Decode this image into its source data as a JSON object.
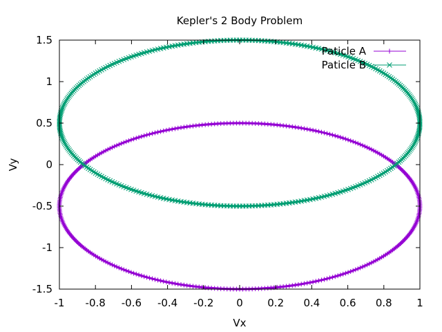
{
  "chart_data": {
    "type": "line",
    "title": "Kepler's 2 Body Problem",
    "xlabel": "Vx",
    "ylabel": "Vy",
    "xlim": [
      -1,
      1
    ],
    "ylim": [
      -1.5,
      1.5
    ],
    "x_ticks": [
      -1,
      -0.8,
      -0.6,
      -0.4,
      -0.2,
      0,
      0.2,
      0.4,
      0.6,
      0.8,
      1
    ],
    "x_tick_labels": [
      "-1",
      "-0.8",
      "-0.6",
      "-0.4",
      "-0.2",
      "0",
      "0.2",
      "0.4",
      "0.6",
      "0.8",
      "1"
    ],
    "y_ticks": [
      -1.5,
      -1,
      -0.5,
      0,
      0.5,
      1,
      1.5
    ],
    "y_tick_labels": [
      "-1.5",
      "-1",
      "-0.5",
      "0",
      "0.5",
      "1",
      "1.5"
    ],
    "grid": false,
    "legend_position": "top-right",
    "series": [
      {
        "name": "Paticle A",
        "color": "#9400d3",
        "marker": "plus",
        "shape": "ellipse",
        "center": [
          0,
          -0.5
        ],
        "radii": [
          1,
          1
        ]
      },
      {
        "name": "Paticle B",
        "color": "#009e73",
        "marker": "cross",
        "shape": "ellipse",
        "center": [
          0,
          0.5
        ],
        "radii": [
          1,
          1
        ]
      }
    ]
  }
}
